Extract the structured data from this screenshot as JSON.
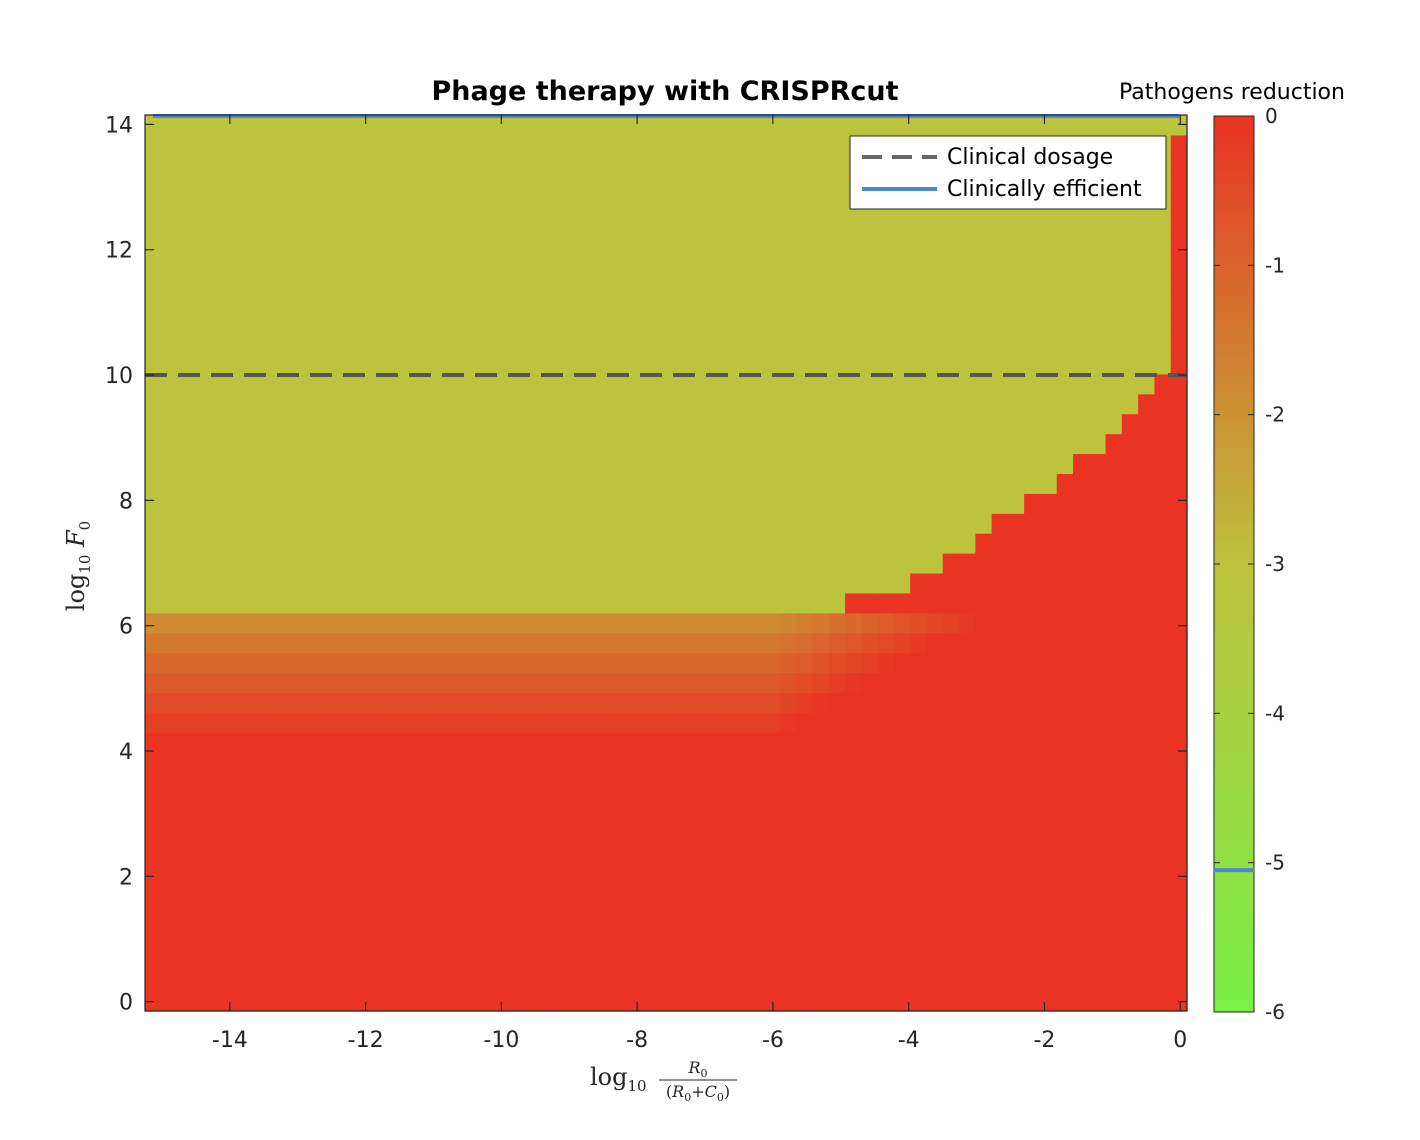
{
  "chart_data": {
    "type": "heatmap",
    "title": "Phage therapy with CRISPRcut",
    "xlabel": "log10 R0/(R0+C0)",
    "ylabel": "log10 F0",
    "xlim": [
      -15.25,
      0.1
    ],
    "ylim": [
      -0.15,
      14.15
    ],
    "xticks": [
      -14,
      -12,
      -10,
      -8,
      -6,
      -4,
      -2,
      0
    ],
    "yticks": [
      0,
      2,
      4,
      6,
      8,
      10,
      12,
      14
    ],
    "colorbar": {
      "title": "Pathogens reduction",
      "range": [
        -6,
        0
      ],
      "ticks": [
        0,
        -1,
        -2,
        -3,
        -4,
        -5,
        -6
      ],
      "colors": [
        "#79f048",
        "#bec23d",
        "#e93323"
      ],
      "clinically_efficient_level": -5.05
    },
    "legend": {
      "placement": "top-right",
      "entries": [
        {
          "label": "Clinical dosage",
          "style": "dashed",
          "color": "#666666"
        },
        {
          "label": "Clinically efficient",
          "style": "solid",
          "color": "#4e86d0"
        }
      ]
    },
    "clinical_dosage_F0": 10,
    "clinically_efficient_F0": 14.15,
    "regions": {
      "upper_plateau_value": -3.05,
      "low_F0_value": 0,
      "low_F0_threshold": 4.25,
      "band_top": 6.1,
      "band_values": [
        {
          "from": 6.1,
          "to": 5.8,
          "value": -1.85
        },
        {
          "from": 5.8,
          "to": 5.45,
          "value": -1.45
        },
        {
          "from": 5.45,
          "to": 5.15,
          "value": -1.1
        },
        {
          "from": 5.15,
          "to": 4.8,
          "value": -0.8
        },
        {
          "from": 4.8,
          "to": 4.5,
          "value": -0.5
        },
        {
          "from": 4.5,
          "to": 4.25,
          "value": -0.25
        }
      ],
      "boundary": [
        {
          "x": -5.0,
          "y": 6.3
        },
        {
          "x": -4.0,
          "y": 6.7
        },
        {
          "x": -3.0,
          "y": 7.4
        },
        {
          "x": -2.0,
          "y": 8.2
        },
        {
          "x": -1.0,
          "y": 9.1
        },
        {
          "x": -0.5,
          "y": 9.65
        },
        {
          "x": -0.25,
          "y": 10.1
        },
        {
          "x": 0.0,
          "y": 14.15
        }
      ]
    }
  }
}
